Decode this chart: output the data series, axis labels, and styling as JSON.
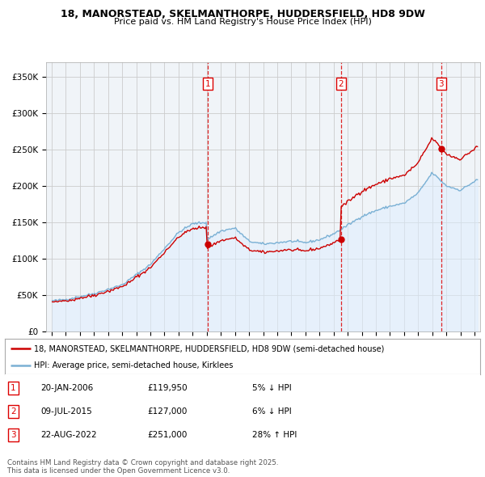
{
  "title": "18, MANORSTEAD, SKELMANTHORPE, HUDDERSFIELD, HD8 9DW",
  "subtitle": "Price paid vs. HM Land Registry's House Price Index (HPI)",
  "legend_line1": "18, MANORSTEAD, SKELMANTHORPE, HUDDERSFIELD, HD8 9DW (semi-detached house)",
  "legend_line2": "HPI: Average price, semi-detached house, Kirklees",
  "footer": "Contains HM Land Registry data © Crown copyright and database right 2025.\nThis data is licensed under the Open Government Licence v3.0.",
  "transactions": [
    {
      "num": 1,
      "date": "20-JAN-2006",
      "price": "£119,950",
      "pct": "5% ↓ HPI"
    },
    {
      "num": 2,
      "date": "09-JUL-2015",
      "price": "£127,000",
      "pct": "6% ↓ HPI"
    },
    {
      "num": 3,
      "date": "22-AUG-2022",
      "price": "£251,000",
      "pct": "28% ↑ HPI"
    }
  ],
  "vline_dates": [
    2006.055,
    2015.52,
    2022.64
  ],
  "sale_years": [
    2006.055,
    2015.52,
    2022.64
  ],
  "sale_prices": [
    119950,
    127000,
    251000
  ],
  "vline_color": "#dd0000",
  "property_color": "#cc0000",
  "hpi_color": "#7ab0d4",
  "hpi_fill_color": "#ddeeff",
  "chart_bg": "#f0f4f8",
  "background_color": "#ffffff",
  "grid_color": "#cccccc",
  "ylim": [
    0,
    370000
  ],
  "xlim_start": 1994.6,
  "xlim_end": 2025.4,
  "yticks": [
    0,
    50000,
    100000,
    150000,
    200000,
    250000,
    300000,
    350000
  ],
  "xticks": [
    1995,
    1996,
    1997,
    1998,
    1999,
    2000,
    2001,
    2002,
    2003,
    2004,
    2005,
    2006,
    2007,
    2008,
    2009,
    2010,
    2011,
    2012,
    2013,
    2014,
    2015,
    2016,
    2017,
    2018,
    2019,
    2020,
    2021,
    2022,
    2023,
    2024,
    2025
  ]
}
